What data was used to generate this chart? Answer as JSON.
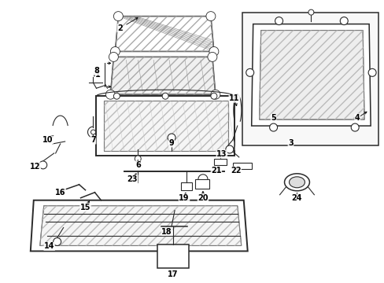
{
  "bg_color": "#ffffff",
  "lc": "#2a2a2a",
  "fig_width": 4.89,
  "fig_height": 3.6,
  "dpi": 100,
  "label_fs": 7.0
}
